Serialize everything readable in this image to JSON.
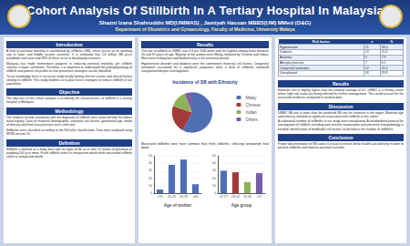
{
  "header": {
    "title": "Cohort Analysis Of Stillbirth In A Tertiary Hospital In Malaysia",
    "authors": "Shazni Izana Shahruddin MD(UNIMAS) , Jamiyah Hassan MBBS(UM) MMed (O&G)",
    "department": "Department of Obstetrics and Gynaecology, Faculty of Medicine, University Malaya"
  },
  "left": [
    {
      "heading": "Introduction",
      "paragraphs": [
        "A third of perinatal mortality is contributed by stillbirths (SB), which occurs at an alarming rate in lower and middle income countries. It is estimated that 2.6 million SB occur worldwide each year and 98% of these occur in developing countries.",
        "Malaysia has made tremendous progress in reducing perinatal mortality, yet stillbirth remains a major contributor. Therefore, it is important to understand the pathophysiology of stillbirth and patient risk profile so that preventive strategies can be identified.",
        "To our knowledge there is no recent study locally looking into the causes and clinical factors relating to stillbirth. This study enables us to plan future strategies to reduce stillbirth in our population."
      ]
    },
    {
      "heading": "Objective",
      "paragraphs": [
        "The objective of this cohort analysis is to identify the characteristics of stillbirth in a tertiary hospital in Malaysia."
      ]
    },
    {
      "heading": "Methodology",
      "paragraphs": [
        "The medical records of patients with the diagnosis of stillbirth were retrieved from the labour ward registry. Data on maternal demographic, antenatal risk factors, gestational age, mode of delivery and fetal characteristics were collected.",
        "Stillbirths were classified according to the ReCoDe classification. Data were analysed using SPSS version 20."
      ]
    },
    {
      "heading": "Definition",
      "paragraphs": [
        "Stillbirth is defined as a baby born with no signs of life at or after 22 weeks of gestation or weighing 500 g or more. Fresh stillbirth refers to intrapartum death while macerated stillbirth refers to antepartum death."
      ]
    }
  ],
  "middle": {
    "heading": "Results",
    "text": [
      "The rate of stillbirth in UMMC was 6.3 per 1000 births with the highest among those between 20 and 39 years of age. Majority of the women were Malay, followed by Chinese and Indian. Most were multiparous and booked early in the antenatal period.",
      "Hypertensive disorder and diabetes were the commonest maternal risk factors. Congenital anomalies accounted for a significant proportion while a third of stillbirths remained unexplained despite investigations."
    ],
    "note": [
      "Macerated stillbirths were more common than fresh stillbirths, reflecting antepartum fetal death."
    ]
  },
  "right": {
    "table": {
      "header": [
        "Risk factors",
        "n",
        "%"
      ],
      "rows": [
        [
          "Hypertension",
          "21",
          "18.4"
        ],
        [
          "Diabetes",
          "13",
          "11.4"
        ],
        [
          "Anaemia",
          "9",
          "7.9"
        ],
        [
          "Abruptio placenta",
          "7",
          "6.1"
        ],
        [
          "Congenital anomalies",
          "12",
          "10.5"
        ],
        [
          "Unexplained",
          "34",
          "29.8"
        ]
      ]
    },
    "sections": [
      {
        "heading": "Results",
        "paragraphs": [
          "However, this is slightly higher than the national average of 4.5. UMMC is a tertiary centre where high risk cases are being referred for further management. This could account for the increased incidence compared to national data."
        ]
      },
      {
        "heading": "Discussion",
        "paragraphs": [
          "UMMC SB rate is lower than the predicted SB rate for countries in the region. Maternal age and ethnicity showed no significant association with stillbirth in this cohort.",
          "A substantial number of stillbirths in our study were unexplained. A standardised protocol for investigation of stillbirth including post mortem examination and placental histopathology is needed. Identification of modifiable risk factors could reduce the number of stillbirths."
        ]
      },
      {
        "heading": "Conclusion",
        "paragraphs": [
          "Proper documentation of SB cases is crucial to ensure better health care delivery in order to prevent stillbirths and improve perinatal outcome."
        ]
      }
    ]
  },
  "chart_data": [
    {
      "type": "pie",
      "title": "Incidence of SB with Ethnicity",
      "categories": [
        "Malay",
        "Chinese",
        "Indian",
        "Others"
      ],
      "values": [
        58,
        22,
        14,
        6
      ],
      "colors": [
        "#4f6fb5",
        "#a33a3a",
        "#8db35a",
        "#7a5ea8"
      ],
      "legend": "right"
    },
    {
      "type": "bar",
      "xlabel": "Age of mother",
      "categories": [
        "<20",
        "20-29",
        "30-39",
        ">40"
      ],
      "values": [
        5,
        38,
        45,
        12
      ],
      "color": "#4f6fb5",
      "ylim": [
        0,
        50
      ],
      "yticks": [
        0,
        10,
        20,
        30,
        40,
        50
      ],
      "grid": true
    },
    {
      "type": "bar",
      "xlabel": "Age group",
      "categories": [
        "22-27",
        "28-33",
        "34-36",
        ">37"
      ],
      "values": [
        30,
        28,
        15,
        27
      ],
      "colors": [
        "#4f6fb5",
        "#a33a3a",
        "#8db35a",
        "#7a5ea8"
      ],
      "ylim": [
        0,
        50
      ],
      "yticks": [
        0,
        10,
        20,
        30,
        40,
        50
      ],
      "grid": true
    }
  ]
}
